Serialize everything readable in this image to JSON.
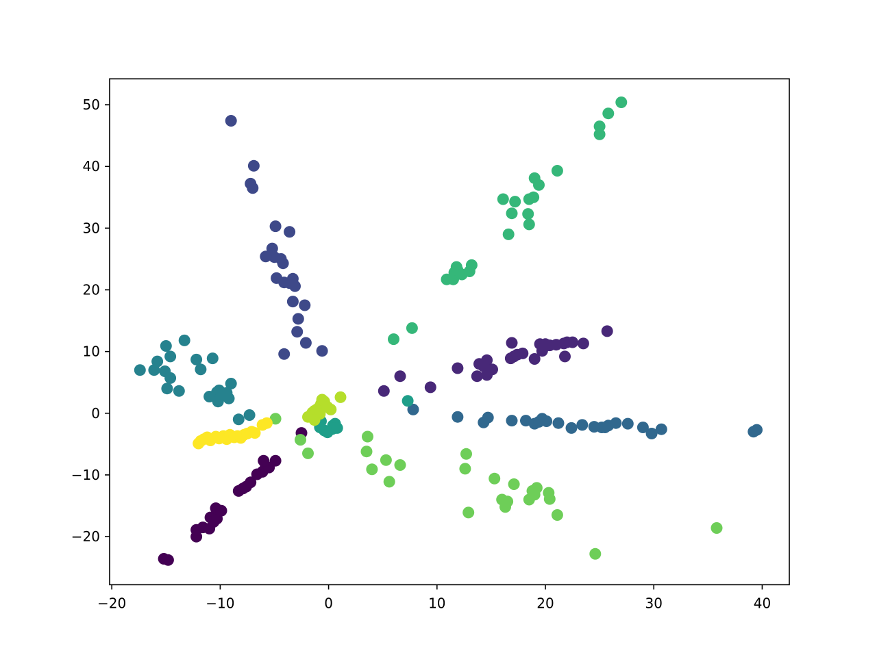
{
  "chart_data": {
    "type": "scatter",
    "title": "",
    "xlabel": "",
    "ylabel": "",
    "xlim": [
      -20.2,
      42.5
    ],
    "ylim": [
      -27.8,
      54.2
    ],
    "xticks": [
      -20,
      -10,
      0,
      10,
      20,
      30,
      40
    ],
    "yticks": [
      -20,
      -10,
      0,
      10,
      20,
      30,
      40,
      50
    ],
    "xtick_labels": [
      "−20",
      "−10",
      "0",
      "10",
      "20",
      "30",
      "40"
    ],
    "ytick_labels": [
      "−20",
      "−10",
      "0",
      "10",
      "20",
      "30",
      "40",
      "50"
    ],
    "grid": false,
    "legend": "none",
    "colormap": "viridis",
    "series": [
      {
        "color": "#440154",
        "points": [
          [
            -15.2,
            -23.6
          ],
          [
            -14.8,
            -23.8
          ],
          [
            -12.2,
            -20.0
          ],
          [
            -12.2,
            -18.9
          ],
          [
            -11.6,
            -18.5
          ],
          [
            -11.0,
            -18.7
          ],
          [
            -10.9,
            -16.9
          ],
          [
            -10.6,
            -17.6
          ],
          [
            -10.3,
            -17.1
          ],
          [
            -10.4,
            -15.4
          ],
          [
            -9.9,
            -15.8
          ],
          [
            -8.3,
            -12.6
          ],
          [
            -7.9,
            -12.2
          ],
          [
            -7.6,
            -11.9
          ],
          [
            -7.2,
            -11.2
          ],
          [
            -6.6,
            -9.9
          ],
          [
            -6.1,
            -9.5
          ],
          [
            -5.8,
            -8.6
          ],
          [
            -5.5,
            -8.8
          ],
          [
            -6.0,
            -7.7
          ],
          [
            -4.9,
            -7.7
          ],
          [
            -2.5,
            -3.2
          ]
        ]
      },
      {
        "color": "#482878",
        "points": [
          [
            5.1,
            3.6
          ],
          [
            6.6,
            6.0
          ],
          [
            9.4,
            4.2
          ],
          [
            11.9,
            7.3
          ],
          [
            13.7,
            6.0
          ],
          [
            13.9,
            8.0
          ],
          [
            14.3,
            7.6
          ],
          [
            14.6,
            8.6
          ],
          [
            14.6,
            6.2
          ],
          [
            15.1,
            7.1
          ],
          [
            16.8,
            8.9
          ],
          [
            16.9,
            11.4
          ],
          [
            17.1,
            9.2
          ],
          [
            17.4,
            9.5
          ],
          [
            17.9,
            9.7
          ],
          [
            19.0,
            8.8
          ],
          [
            19.5,
            11.2
          ],
          [
            19.7,
            10.1
          ],
          [
            19.8,
            10.6
          ],
          [
            20.0,
            11.2
          ],
          [
            20.4,
            11.0
          ],
          [
            21.0,
            11.1
          ],
          [
            21.7,
            11.3
          ],
          [
            21.8,
            9.2
          ],
          [
            22.0,
            11.5
          ],
          [
            22.5,
            11.5
          ],
          [
            23.5,
            11.3
          ],
          [
            25.7,
            13.3
          ]
        ]
      },
      {
        "color": "#3e4989",
        "points": [
          [
            -9.0,
            47.4
          ],
          [
            -6.9,
            40.1
          ],
          [
            -7.2,
            37.2
          ],
          [
            -7.0,
            36.5
          ],
          [
            -4.9,
            30.3
          ],
          [
            -3.6,
            29.4
          ],
          [
            -5.2,
            26.7
          ],
          [
            -5.0,
            25.3
          ],
          [
            -5.8,
            25.4
          ],
          [
            -4.4,
            25.0
          ],
          [
            -4.2,
            24.3
          ],
          [
            -4.8,
            21.9
          ],
          [
            -4.1,
            21.2
          ],
          [
            -3.6,
            21.1
          ],
          [
            -3.3,
            21.8
          ],
          [
            -3.1,
            20.6
          ],
          [
            -3.3,
            18.1
          ],
          [
            -2.2,
            17.5
          ],
          [
            -2.8,
            15.3
          ],
          [
            -2.9,
            13.2
          ],
          [
            -4.1,
            9.6
          ],
          [
            -2.1,
            11.4
          ],
          [
            -0.6,
            10.1
          ]
        ]
      },
      {
        "color": "#31688e",
        "points": [
          [
            7.8,
            0.6
          ],
          [
            11.9,
            -0.6
          ],
          [
            14.3,
            -1.5
          ],
          [
            14.7,
            -0.7
          ],
          [
            16.9,
            -1.2
          ],
          [
            18.2,
            -1.2
          ],
          [
            19.0,
            -1.7
          ],
          [
            19.4,
            -1.4
          ],
          [
            19.7,
            -0.9
          ],
          [
            20.1,
            -1.3
          ],
          [
            21.2,
            -1.6
          ],
          [
            22.4,
            -2.4
          ],
          [
            23.4,
            -1.9
          ],
          [
            24.5,
            -2.2
          ],
          [
            25.2,
            -2.3
          ],
          [
            25.5,
            -2.3
          ],
          [
            25.8,
            -2.0
          ],
          [
            26.5,
            -1.6
          ],
          [
            27.6,
            -1.7
          ],
          [
            29.0,
            -2.3
          ],
          [
            29.8,
            -3.3
          ],
          [
            30.7,
            -2.6
          ],
          [
            39.2,
            -3.0
          ],
          [
            39.5,
            -2.7
          ]
        ]
      },
      {
        "color": "#26828e",
        "points": [
          [
            -17.4,
            7.0
          ],
          [
            -16.1,
            7.0
          ],
          [
            -15.8,
            8.4
          ],
          [
            -15.0,
            10.9
          ],
          [
            -15.1,
            6.8
          ],
          [
            -14.9,
            4.0
          ],
          [
            -14.6,
            5.7
          ],
          [
            -14.6,
            9.2
          ],
          [
            -13.8,
            3.6
          ],
          [
            -13.3,
            11.8
          ],
          [
            -12.2,
            8.7
          ],
          [
            -11.8,
            7.1
          ],
          [
            -11.0,
            2.7
          ],
          [
            -10.7,
            8.9
          ],
          [
            -10.3,
            3.4
          ],
          [
            -10.1,
            3.7
          ],
          [
            -10.2,
            1.9
          ],
          [
            -9.9,
            2.8
          ],
          [
            -9.2,
            2.4
          ],
          [
            -9.0,
            4.8
          ],
          [
            -9.4,
            3.3
          ],
          [
            -8.3,
            -1.0
          ],
          [
            -7.3,
            -0.3
          ]
        ]
      },
      {
        "color": "#1f9e89",
        "points": [
          [
            -0.8,
            -2.3
          ],
          [
            -0.4,
            -2.8
          ],
          [
            -0.1,
            -3.1
          ],
          [
            0.3,
            -2.6
          ],
          [
            0.4,
            -2.0
          ],
          [
            0.6,
            -1.7
          ],
          [
            0.6,
            -2.4
          ],
          [
            0.8,
            -2.4
          ],
          [
            -0.7,
            -1.3
          ],
          [
            7.3,
            2.0
          ]
        ]
      },
      {
        "color": "#35b779",
        "points": [
          [
            6.0,
            12.0
          ],
          [
            7.7,
            13.8
          ],
          [
            10.9,
            21.7
          ],
          [
            11.5,
            21.7
          ],
          [
            11.6,
            22.8
          ],
          [
            11.8,
            23.7
          ],
          [
            11.9,
            23.2
          ],
          [
            12.3,
            22.5
          ],
          [
            13.0,
            23.0
          ],
          [
            13.2,
            24.0
          ],
          [
            16.1,
            34.7
          ],
          [
            16.6,
            29.0
          ],
          [
            16.9,
            32.4
          ],
          [
            17.2,
            34.3
          ],
          [
            18.4,
            32.3
          ],
          [
            18.5,
            30.6
          ],
          [
            18.5,
            34.7
          ],
          [
            18.9,
            35.0
          ],
          [
            19.0,
            38.1
          ],
          [
            19.4,
            37.0
          ],
          [
            21.1,
            39.3
          ],
          [
            25.0,
            45.2
          ],
          [
            25.0,
            46.5
          ],
          [
            25.8,
            48.6
          ],
          [
            27.0,
            50.4
          ]
        ]
      },
      {
        "color": "#6ece58",
        "points": [
          [
            -4.9,
            -0.9
          ],
          [
            -2.6,
            -4.3
          ],
          [
            -1.9,
            -6.5
          ],
          [
            3.6,
            -3.8
          ],
          [
            3.5,
            -6.2
          ],
          [
            4.0,
            -9.1
          ],
          [
            5.3,
            -7.6
          ],
          [
            5.6,
            -11.1
          ],
          [
            6.6,
            -8.4
          ],
          [
            12.7,
            -6.6
          ],
          [
            12.6,
            -9.0
          ],
          [
            12.9,
            -16.1
          ],
          [
            15.3,
            -10.6
          ],
          [
            16.0,
            -14.0
          ],
          [
            16.3,
            -15.2
          ],
          [
            16.5,
            -14.3
          ],
          [
            17.1,
            -11.5
          ],
          [
            18.5,
            -14.0
          ],
          [
            18.8,
            -12.6
          ],
          [
            19.0,
            -13.2
          ],
          [
            19.2,
            -12.1
          ],
          [
            20.3,
            -12.9
          ],
          [
            20.4,
            -13.9
          ],
          [
            21.1,
            -16.5
          ],
          [
            24.6,
            -22.8
          ],
          [
            35.8,
            -18.6
          ]
        ]
      },
      {
        "color": "#b5de2b",
        "points": [
          [
            -1.9,
            -0.6
          ],
          [
            -1.7,
            -0.4
          ],
          [
            -1.5,
            0.1
          ],
          [
            -1.3,
            0.4
          ],
          [
            -1.1,
            0.6
          ],
          [
            -0.9,
            0.9
          ],
          [
            -0.7,
            1.5
          ],
          [
            -0.6,
            2.2
          ],
          [
            -0.4,
            1.9
          ],
          [
            -0.1,
            1.0
          ],
          [
            0.2,
            0.6
          ],
          [
            1.1,
            2.6
          ],
          [
            -0.8,
            -0.1
          ],
          [
            -1.3,
            -1.1
          ]
        ]
      },
      {
        "color": "#fde725",
        "points": [
          [
            -12.0,
            -4.9
          ],
          [
            -11.8,
            -4.5
          ],
          [
            -11.5,
            -4.2
          ],
          [
            -11.2,
            -3.9
          ],
          [
            -10.9,
            -4.4
          ],
          [
            -10.4,
            -3.8
          ],
          [
            -10.1,
            -4.1
          ],
          [
            -9.7,
            -3.7
          ],
          [
            -9.4,
            -4.2
          ],
          [
            -9.1,
            -3.5
          ],
          [
            -8.7,
            -3.9
          ],
          [
            -8.4,
            -3.7
          ],
          [
            -8.1,
            -4.0
          ],
          [
            -7.8,
            -3.5
          ],
          [
            -7.5,
            -3.3
          ],
          [
            -7.1,
            -3.0
          ],
          [
            -6.8,
            -3.2
          ],
          [
            -6.1,
            -1.9
          ],
          [
            -5.7,
            -1.6
          ]
        ]
      }
    ]
  }
}
